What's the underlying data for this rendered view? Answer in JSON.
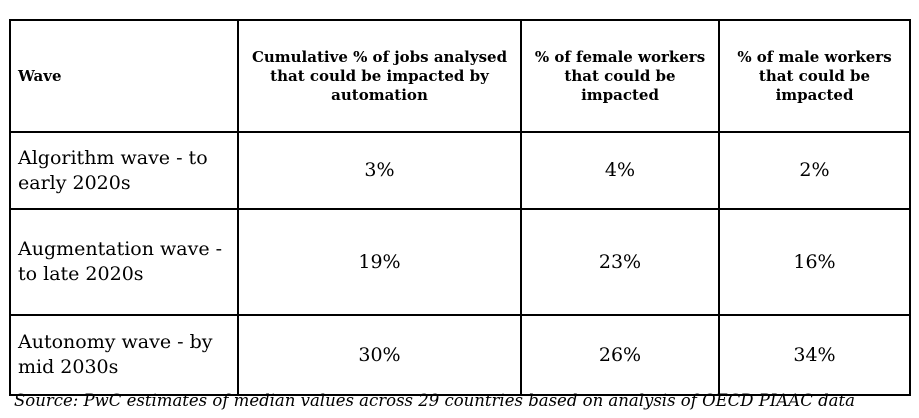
{
  "table": {
    "headers": [
      "Wave",
      "Cumulative % of jobs analysed that could be impacted by automation",
      "% of female workers that could be impacted",
      "% of male workers that could be impacted"
    ],
    "rows": [
      [
        "Algorithm wave - to early 2020s",
        "3%",
        "4%",
        "2%"
      ],
      [
        "Augmentation wave - to late 2020s",
        "19%",
        "23%",
        "16%"
      ],
      [
        "Autonomy wave - by mid 2030s",
        "30%",
        "26%",
        "34%"
      ]
    ]
  },
  "source": "Source: PwC estimates of median values across 29 countries based on analysis of OECD PIAAC data"
}
